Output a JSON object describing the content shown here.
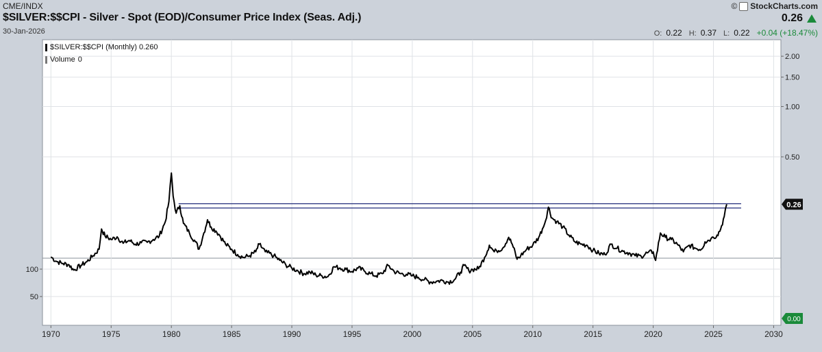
{
  "header": {
    "exchange": "CME/INDX",
    "title": "$SILVER:$$CPI - Silver - Spot (EOD)/Consumer Price Index (Seas. Adj.)",
    "date": "30-Jan-2026",
    "brand_copy": "©",
    "brand_name": "StockCharts.com",
    "last_price": "0.26",
    "o_label": "O:",
    "o_value": "0.22",
    "h_label": "H:",
    "h_value": "0.37",
    "l_label": "L:",
    "l_value": "0.22",
    "change": "+0.04 (+18.47%)"
  },
  "legend": {
    "series_label": "$SILVER:$$CPI (Monthly) 0.260",
    "volume_label": "Volume",
    "volume_value": "0"
  },
  "colors": {
    "background": "#ccd2da",
    "plot": "#ffffff",
    "line": "#000000",
    "hline": "#1f2a7a",
    "up": "#1a8a3a",
    "grid": "#dfe2e6"
  },
  "chart_data": {
    "type": "line",
    "scale": "log",
    "x_ticks": [
      "1970",
      "1975",
      "1980",
      "1985",
      "1990",
      "1995",
      "2000",
      "2005",
      "2010",
      "2015",
      "2020",
      "2025",
      "2030"
    ],
    "xlim": [
      1969.3,
      2030.6
    ],
    "y_ticks": [
      {
        "label": "2.00",
        "value": 2.0
      },
      {
        "label": "1.50",
        "value": 1.5
      },
      {
        "label": "1.00",
        "value": 1.0
      },
      {
        "label": "0.50",
        "value": 0.5
      }
    ],
    "ylim": [
      0.05,
      2.2
    ],
    "volume_ticks": [
      "100",
      "50"
    ],
    "last_label": "0.26",
    "volume_last_label": "0.00",
    "horizontal_lines": [
      {
        "value": 0.262,
        "x_start": 1980.6,
        "x_end": 2027.3
      },
      {
        "value": 0.247,
        "x_start": 1980.6,
        "x_end": 2027.3
      }
    ],
    "series": [
      {
        "name": "$SILVER:$$CPI",
        "points": [
          [
            1970.0,
            0.126
          ],
          [
            1970.5,
            0.118
          ],
          [
            1971.0,
            0.115
          ],
          [
            1971.5,
            0.113
          ],
          [
            1971.9,
            0.105
          ],
          [
            1972.5,
            0.112
          ],
          [
            1973.0,
            0.118
          ],
          [
            1973.5,
            0.128
          ],
          [
            1974.0,
            0.14
          ],
          [
            1974.2,
            0.185
          ],
          [
            1974.5,
            0.168
          ],
          [
            1975.0,
            0.16
          ],
          [
            1975.5,
            0.166
          ],
          [
            1976.0,
            0.152
          ],
          [
            1976.5,
            0.158
          ],
          [
            1977.0,
            0.15
          ],
          [
            1977.5,
            0.153
          ],
          [
            1978.0,
            0.154
          ],
          [
            1978.5,
            0.16
          ],
          [
            1979.0,
            0.168
          ],
          [
            1979.5,
            0.205
          ],
          [
            1979.8,
            0.27
          ],
          [
            1980.0,
            0.4
          ],
          [
            1980.15,
            0.29
          ],
          [
            1980.4,
            0.23
          ],
          [
            1980.7,
            0.255
          ],
          [
            1981.0,
            0.2
          ],
          [
            1981.5,
            0.175
          ],
          [
            1982.0,
            0.155
          ],
          [
            1982.3,
            0.14
          ],
          [
            1982.7,
            0.175
          ],
          [
            1983.0,
            0.21
          ],
          [
            1983.3,
            0.19
          ],
          [
            1983.7,
            0.18
          ],
          [
            1984.0,
            0.17
          ],
          [
            1984.5,
            0.15
          ],
          [
            1985.0,
            0.14
          ],
          [
            1985.5,
            0.13
          ],
          [
            1986.0,
            0.125
          ],
          [
            1986.5,
            0.128
          ],
          [
            1987.0,
            0.135
          ],
          [
            1987.3,
            0.15
          ],
          [
            1987.8,
            0.135
          ],
          [
            1988.5,
            0.128
          ],
          [
            1989.0,
            0.12
          ],
          [
            1989.5,
            0.113
          ],
          [
            1990.0,
            0.108
          ],
          [
            1990.5,
            0.104
          ],
          [
            1991.0,
            0.1
          ],
          [
            1991.5,
            0.102
          ],
          [
            1992.0,
            0.098
          ],
          [
            1992.5,
            0.097
          ],
          [
            1993.0,
            0.096
          ],
          [
            1993.5,
            0.11
          ],
          [
            1994.0,
            0.108
          ],
          [
            1994.5,
            0.106
          ],
          [
            1995.0,
            0.103
          ],
          [
            1995.5,
            0.108
          ],
          [
            1996.0,
            0.104
          ],
          [
            1996.5,
            0.1
          ],
          [
            1997.0,
            0.097
          ],
          [
            1997.5,
            0.1
          ],
          [
            1998.0,
            0.112
          ],
          [
            1998.5,
            0.103
          ],
          [
            1999.0,
            0.1
          ],
          [
            1999.5,
            0.099
          ],
          [
            2000.0,
            0.097
          ],
          [
            2000.5,
            0.095
          ],
          [
            2001.0,
            0.092
          ],
          [
            2001.5,
            0.089
          ],
          [
            2002.0,
            0.09
          ],
          [
            2002.5,
            0.091
          ],
          [
            2003.0,
            0.089
          ],
          [
            2003.5,
            0.092
          ],
          [
            2004.0,
            0.102
          ],
          [
            2004.3,
            0.112
          ],
          [
            2004.7,
            0.104
          ],
          [
            2005.0,
            0.106
          ],
          [
            2005.5,
            0.107
          ],
          [
            2006.0,
            0.125
          ],
          [
            2006.4,
            0.148
          ],
          [
            2006.8,
            0.135
          ],
          [
            2007.0,
            0.137
          ],
          [
            2007.5,
            0.142
          ],
          [
            2008.0,
            0.165
          ],
          [
            2008.3,
            0.15
          ],
          [
            2008.7,
            0.122
          ],
          [
            2009.0,
            0.128
          ],
          [
            2009.5,
            0.14
          ],
          [
            2010.0,
            0.148
          ],
          [
            2010.5,
            0.165
          ],
          [
            2010.8,
            0.185
          ],
          [
            2011.0,
            0.2
          ],
          [
            2011.3,
            0.25
          ],
          [
            2011.6,
            0.215
          ],
          [
            2012.0,
            0.205
          ],
          [
            2012.5,
            0.19
          ],
          [
            2013.0,
            0.17
          ],
          [
            2013.5,
            0.155
          ],
          [
            2014.0,
            0.15
          ],
          [
            2014.5,
            0.148
          ],
          [
            2015.0,
            0.138
          ],
          [
            2015.5,
            0.132
          ],
          [
            2016.0,
            0.13
          ],
          [
            2016.5,
            0.15
          ],
          [
            2017.0,
            0.142
          ],
          [
            2017.5,
            0.136
          ],
          [
            2018.0,
            0.133
          ],
          [
            2018.5,
            0.128
          ],
          [
            2019.0,
            0.127
          ],
          [
            2019.5,
            0.133
          ],
          [
            2020.0,
            0.135
          ],
          [
            2020.2,
            0.12
          ],
          [
            2020.6,
            0.175
          ],
          [
            2021.0,
            0.165
          ],
          [
            2021.5,
            0.16
          ],
          [
            2022.0,
            0.15
          ],
          [
            2022.5,
            0.135
          ],
          [
            2023.0,
            0.148
          ],
          [
            2023.5,
            0.142
          ],
          [
            2024.0,
            0.14
          ],
          [
            2024.3,
            0.155
          ],
          [
            2024.8,
            0.162
          ],
          [
            2025.0,
            0.165
          ],
          [
            2025.3,
            0.17
          ],
          [
            2025.6,
            0.185
          ],
          [
            2025.9,
            0.22
          ],
          [
            2026.1,
            0.26
          ]
        ]
      }
    ]
  }
}
